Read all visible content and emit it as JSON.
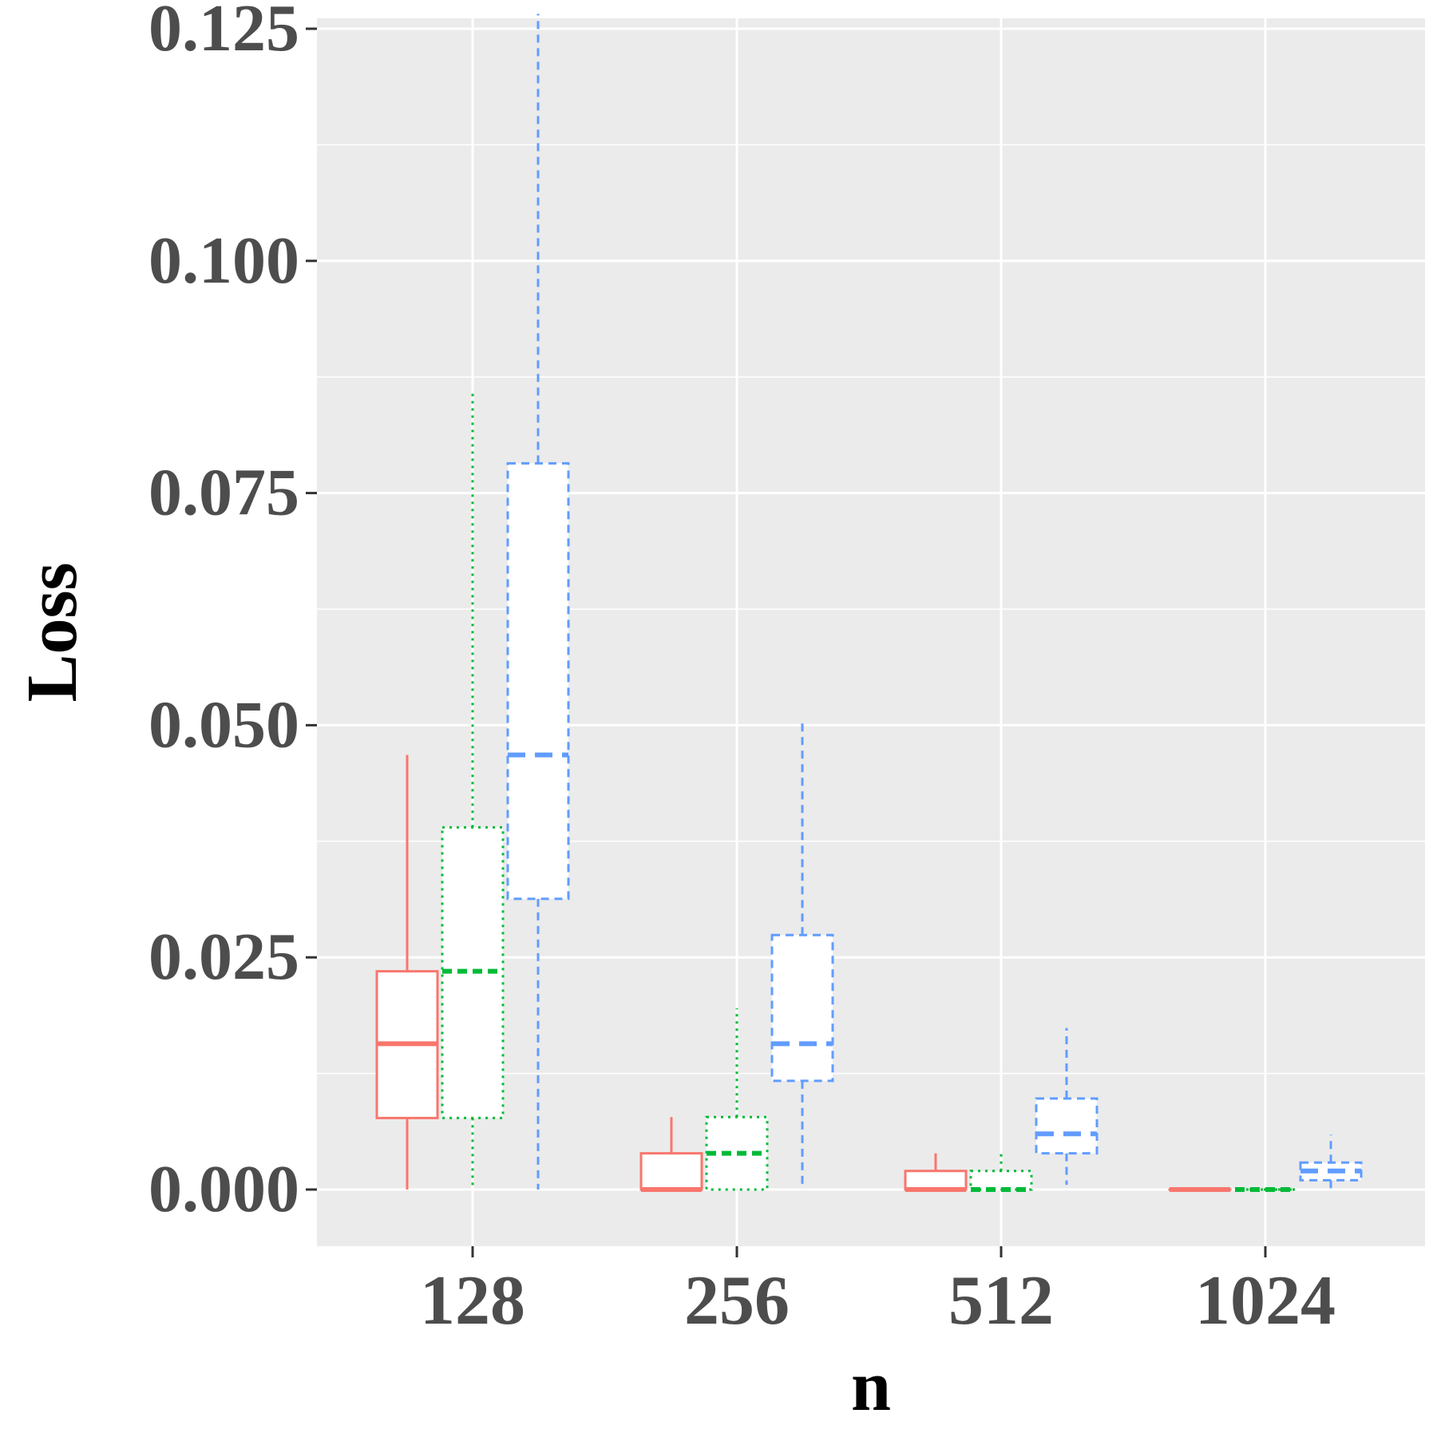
{
  "chart_data": {
    "type": "box",
    "xlabel": "n",
    "ylabel": "Loss",
    "categories": [
      "128",
      "256",
      "512",
      "1024"
    ],
    "ylim": [
      -0.012,
      0.127
    ],
    "yticks": [
      0.0,
      0.025,
      0.05,
      0.075,
      0.1,
      0.125
    ],
    "ytick_labels": [
      "0.000",
      "0.025",
      "0.050",
      "0.075",
      "0.100",
      "0.125"
    ],
    "grid": true,
    "background": "#EBEBEB",
    "series": [
      {
        "color": "#F8766D",
        "linetype": "solid",
        "boxes": [
          {
            "category": "128",
            "lower_whisker": 0.0,
            "q1": 0.0077,
            "median": 0.0157,
            "q3": 0.0235,
            "upper_whisker": 0.0468
          },
          {
            "category": "256",
            "lower_whisker": 0.0,
            "q1": 0.0,
            "median": 0.0,
            "q3": 0.0039,
            "upper_whisker": 0.0078
          },
          {
            "category": "512",
            "lower_whisker": 0.0,
            "q1": 0.0,
            "median": 0.0,
            "q3": 0.002,
            "upper_whisker": 0.0039
          },
          {
            "category": "1024",
            "lower_whisker": 0.0,
            "q1": 0.0,
            "median": 0.0,
            "q3": 0.0,
            "upper_whisker": 0.0
          }
        ]
      },
      {
        "color": "#00BA38",
        "linetype": "dotted",
        "boxes": [
          {
            "category": "128",
            "lower_whisker": 0.0,
            "q1": 0.0077,
            "median": 0.0235,
            "q3": 0.039,
            "upper_whisker": 0.0857
          },
          {
            "category": "256",
            "lower_whisker": 0.0,
            "q1": 0.0,
            "median": 0.0039,
            "q3": 0.0078,
            "upper_whisker": 0.0195
          },
          {
            "category": "512",
            "lower_whisker": 0.0,
            "q1": 0.0,
            "median": 0.0,
            "q3": 0.002,
            "upper_whisker": 0.0039
          },
          {
            "category": "1024",
            "lower_whisker": 0.0,
            "q1": 0.0,
            "median": 0.0,
            "q3": 0.0,
            "upper_whisker": 0.0
          }
        ]
      },
      {
        "color": "#619CFF",
        "linetype": "dashed",
        "boxes": [
          {
            "category": "128",
            "lower_whisker": 0.0,
            "q1": 0.0313,
            "median": 0.0468,
            "q3": 0.0782,
            "upper_whisker": 0.1266
          },
          {
            "category": "256",
            "lower_whisker": 0.0,
            "q1": 0.0117,
            "median": 0.0157,
            "q3": 0.0274,
            "upper_whisker": 0.0507
          },
          {
            "category": "512",
            "lower_whisker": 0.0005,
            "q1": 0.0039,
            "median": 0.006,
            "q3": 0.0098,
            "upper_whisker": 0.0174
          },
          {
            "category": "1024",
            "lower_whisker": 0.0,
            "q1": 0.001,
            "median": 0.002,
            "q3": 0.0029,
            "upper_whisker": 0.0059
          }
        ]
      }
    ]
  }
}
